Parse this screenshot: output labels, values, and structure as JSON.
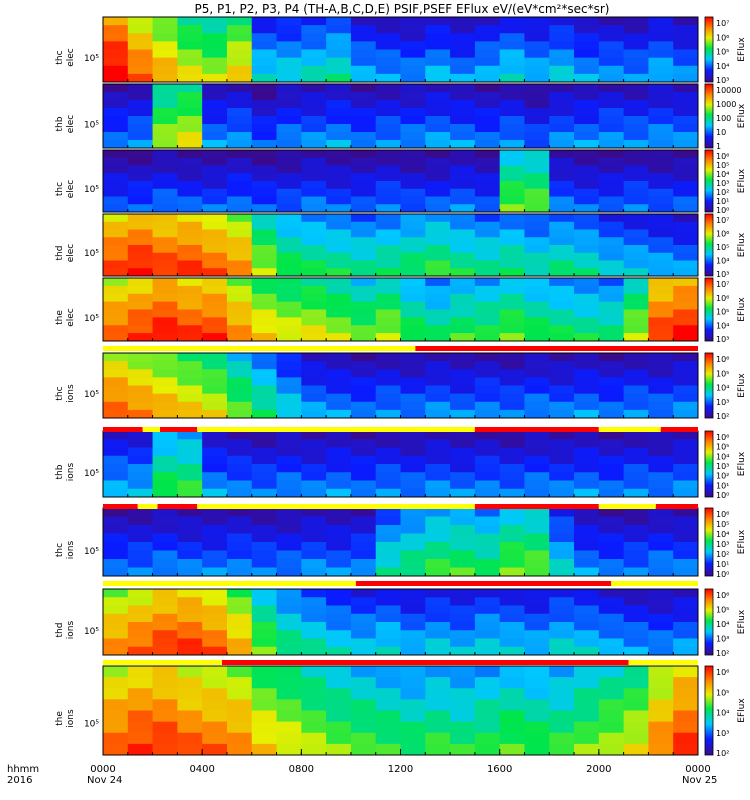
{
  "chart_data": {
    "type": "heatmap",
    "title": "P5, P1, P2, P3, P4 (TH-A,B,C,D,E) PSIF,PSEF EFlux eV/(eV*cm²*sec*sr)",
    "x_axis": {
      "ticks": [
        "0000",
        "0400",
        "0800",
        "1200",
        "1600",
        "2000",
        "0000"
      ],
      "tick_hours": [
        0,
        4,
        8,
        12,
        16,
        20,
        24
      ],
      "range_hours": [
        0,
        24
      ],
      "date_labels": [
        "Nov 24",
        "Nov 25"
      ],
      "row_labels": [
        "hhmm",
        "2016"
      ]
    },
    "y_axis": {
      "scale": "log",
      "tick_label": "10⁵"
    },
    "colorbar_label": "EFlux",
    "panels": [
      {
        "label": [
          "thc",
          "elec"
        ],
        "id": "thc-elec",
        "colorbar": [
          "10⁷",
          "10⁶",
          "10⁵",
          "10⁴",
          "10³"
        ],
        "levels": [
          0.95,
          0.8,
          0.7,
          0.6,
          0.55,
          0.65,
          0.3,
          0.3,
          0.32,
          0.35,
          0.25,
          0.22,
          0.2,
          0.25,
          0.2,
          0.25,
          0.3,
          0.25,
          0.28,
          0.22,
          0.22,
          0.2,
          0.25,
          0.2
        ]
      },
      {
        "label": [
          "thb",
          "elec"
        ],
        "id": "thb-elec",
        "colorbar": [
          "10000",
          "1000",
          "100",
          "10",
          "1"
        ],
        "levels": [
          0.18,
          0.2,
          0.55,
          0.6,
          0.2,
          0.22,
          0.15,
          0.2,
          0.2,
          0.22,
          0.18,
          0.2,
          0.2,
          0.22,
          0.2,
          0.18,
          0.2,
          0.15,
          0.2,
          0.2,
          0.22,
          0.2,
          0.22,
          0.2
        ]
      },
      {
        "label": [
          "thc",
          "elec"
        ],
        "id": "thc-elec-2",
        "colorbar": [
          "10⁶",
          "10⁵",
          "10⁴",
          "10³",
          "10²",
          "10¹",
          "10⁰"
        ],
        "levels": [
          0.15,
          0.15,
          0.18,
          0.15,
          0.15,
          0.18,
          0.15,
          0.15,
          0.18,
          0.15,
          0.15,
          0.18,
          0.15,
          0.15,
          0.18,
          0.15,
          0.5,
          0.5,
          0.18,
          0.15,
          0.15,
          0.18,
          0.15,
          0.15
        ]
      },
      {
        "label": [
          "thd",
          "elec"
        ],
        "id": "thd-elec",
        "colorbar": [
          "10⁷",
          "10⁶",
          "10⁵",
          "10⁴",
          "10³"
        ],
        "levels": [
          0.85,
          0.9,
          0.85,
          0.85,
          0.8,
          0.75,
          0.55,
          0.45,
          0.42,
          0.4,
          0.38,
          0.4,
          0.42,
          0.45,
          0.4,
          0.38,
          0.4,
          0.35,
          0.38,
          0.35,
          0.3,
          0.28,
          0.25,
          0.22
        ]
      },
      {
        "label": [
          "the",
          "elec"
        ],
        "id": "the-elec",
        "colorbar": [
          "10⁷",
          "10⁶",
          "10⁵",
          "10⁴",
          "10³"
        ],
        "levels": [
          0.8,
          0.85,
          0.9,
          0.85,
          0.85,
          0.75,
          0.65,
          0.6,
          0.6,
          0.55,
          0.5,
          0.55,
          0.45,
          0.4,
          0.45,
          0.45,
          0.5,
          0.45,
          0.42,
          0.4,
          0.4,
          0.55,
          0.85,
          0.9
        ]
      },
      {
        "label": [
          "thc",
          "ions"
        ],
        "id": "thc-ions",
        "colorbar": [
          "10⁶",
          "10⁵",
          "10⁴",
          "10³",
          "10²"
        ],
        "levels": [
          0.8,
          0.75,
          0.7,
          0.65,
          0.6,
          0.5,
          0.4,
          0.3,
          0.22,
          0.2,
          0.18,
          0.2,
          0.18,
          0.2,
          0.18,
          0.2,
          0.18,
          0.2,
          0.18,
          0.2,
          0.18,
          0.2,
          0.18,
          0.2
        ]
      },
      {
        "label": [
          "thb",
          "ions"
        ],
        "id": "thb-ions",
        "colorbar": [
          "10⁶",
          "10⁵",
          "10⁴",
          "10³",
          "10²",
          "10¹",
          "10⁰"
        ],
        "levels": [
          0.25,
          0.25,
          0.45,
          0.45,
          0.22,
          0.2,
          0.18,
          0.2,
          0.18,
          0.2,
          0.18,
          0.2,
          0.18,
          0.2,
          0.18,
          0.2,
          0.18,
          0.2,
          0.18,
          0.2,
          0.18,
          0.2,
          0.18,
          0.2
        ]
      },
      {
        "label": [
          "thc",
          "ions"
        ],
        "id": "thc-ions-2",
        "colorbar": [
          "10⁶",
          "10⁵",
          "10⁴",
          "10³",
          "10²",
          "10¹",
          "10⁰"
        ],
        "levels": [
          0.18,
          0.18,
          0.2,
          0.18,
          0.18,
          0.2,
          0.18,
          0.18,
          0.2,
          0.18,
          0.2,
          0.35,
          0.4,
          0.45,
          0.45,
          0.42,
          0.5,
          0.5,
          0.3,
          0.2,
          0.18,
          0.18,
          0.2,
          0.18
        ]
      },
      {
        "label": [
          "thd",
          "ions"
        ],
        "id": "thd-ions",
        "colorbar": [
          "10⁶",
          "10⁵",
          "10⁴",
          "10³",
          "10²"
        ],
        "levels": [
          0.75,
          0.8,
          0.85,
          0.85,
          0.8,
          0.7,
          0.5,
          0.4,
          0.35,
          0.3,
          0.28,
          0.3,
          0.25,
          0.28,
          0.25,
          0.3,
          0.28,
          0.25,
          0.3,
          0.28,
          0.25,
          0.22,
          0.2,
          0.22
        ]
      },
      {
        "label": [
          "the",
          "ions"
        ],
        "id": "the-ions",
        "colorbar": [
          "10⁶",
          "10⁵",
          "10⁴",
          "10³",
          "10²"
        ],
        "levels": [
          0.8,
          0.85,
          0.85,
          0.8,
          0.78,
          0.75,
          0.65,
          0.6,
          0.55,
          0.5,
          0.48,
          0.45,
          0.42,
          0.45,
          0.42,
          0.45,
          0.48,
          0.45,
          0.45,
          0.5,
          0.55,
          0.6,
          0.75,
          0.85
        ]
      }
    ],
    "mode_bars": [
      {
        "after_panel": "the-elec",
        "segments": [
          {
            "from": 0,
            "to": 12.6,
            "color": "#ffff00"
          },
          {
            "from": 12.6,
            "to": 24,
            "color": "#ff0000"
          }
        ]
      },
      {
        "after_panel": "thc-ions",
        "segments": [
          {
            "from": 0,
            "to": 1.6,
            "color": "#ff0000"
          },
          {
            "from": 1.6,
            "to": 2.3,
            "color": "#ffff00"
          },
          {
            "from": 2.3,
            "to": 3.8,
            "color": "#ff0000"
          },
          {
            "from": 3.8,
            "to": 15,
            "color": "#ffff00"
          },
          {
            "from": 15,
            "to": 20,
            "color": "#ff0000"
          },
          {
            "from": 20,
            "to": 22.5,
            "color": "#ffff00"
          },
          {
            "from": 22.5,
            "to": 24,
            "color": "#ff0000"
          }
        ]
      },
      {
        "after_panel": "thb-ions",
        "segments": [
          {
            "from": 0,
            "to": 1.4,
            "color": "#ff0000"
          },
          {
            "from": 1.4,
            "to": 2.2,
            "color": "#ffff00"
          },
          {
            "from": 2.2,
            "to": 3.8,
            "color": "#ff0000"
          },
          {
            "from": 3.8,
            "to": 15,
            "color": "#ffff00"
          },
          {
            "from": 15,
            "to": 20,
            "color": "#ff0000"
          },
          {
            "from": 20,
            "to": 22.3,
            "color": "#ffff00"
          },
          {
            "from": 22.3,
            "to": 24,
            "color": "#ff0000"
          }
        ]
      },
      {
        "after_panel": "thc-ions-2",
        "segments": [
          {
            "from": 0,
            "to": 10.2,
            "color": "#ffff00"
          },
          {
            "from": 10.2,
            "to": 20.5,
            "color": "#ff0000"
          },
          {
            "from": 20.5,
            "to": 24,
            "color": "#ffff00"
          }
        ]
      },
      {
        "after_panel": "thd-ions",
        "segments": [
          {
            "from": 0,
            "to": 4.8,
            "color": "#ffff00"
          },
          {
            "from": 4.8,
            "to": 21.2,
            "color": "#ff0000"
          },
          {
            "from": 21.2,
            "to": 24,
            "color": "#ffff00"
          }
        ]
      }
    ]
  }
}
